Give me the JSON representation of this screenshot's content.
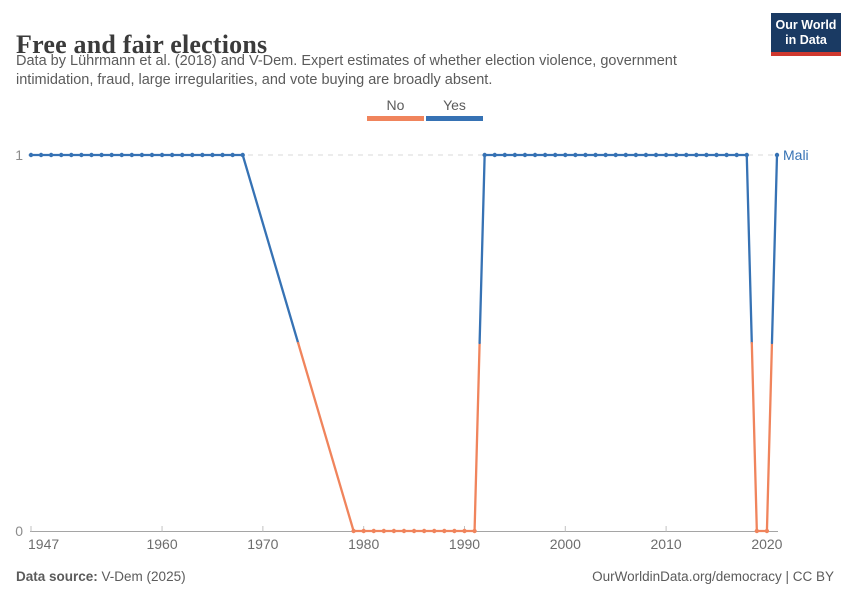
{
  "header": {
    "title": "Free and fair elections",
    "subtitle_lines": [
      "Data by Lührmann et al. (2018) and V-Dem. Expert estimates of whether election violence, government",
      "intimidation, fraud, large irregularities, and vote buying are broadly absent."
    ],
    "logo": {
      "line1": "Our World",
      "line2": "in Data",
      "bg_color": "#1A3A63",
      "bar_color": "#D0382E"
    }
  },
  "legend": {
    "items": [
      {
        "label": "No",
        "color": "#F0845C"
      },
      {
        "label": "Yes",
        "color": "#3672B4"
      }
    ]
  },
  "chart_data": {
    "type": "line",
    "title": "Free and fair elections",
    "entity_label": "Mali",
    "xlim": [
      1947,
      2021
    ],
    "ylim": [
      0,
      1
    ],
    "xticks": [
      1947,
      1960,
      1970,
      1980,
      1990,
      2000,
      2010,
      2020
    ],
    "yticks": [
      0,
      1
    ],
    "grid": "dashed horizontal line at y=1",
    "legend_position": "top-center",
    "category_labels": {
      "0": "No",
      "1": "Yes"
    },
    "colors": {
      "0": "#F0845C",
      "1": "#3672B4"
    },
    "data_gap_years": [
      1969,
      1978
    ],
    "series": [
      {
        "name": "Mali",
        "points": [
          [
            1947,
            1
          ],
          [
            1948,
            1
          ],
          [
            1949,
            1
          ],
          [
            1950,
            1
          ],
          [
            1951,
            1
          ],
          [
            1952,
            1
          ],
          [
            1953,
            1
          ],
          [
            1954,
            1
          ],
          [
            1955,
            1
          ],
          [
            1956,
            1
          ],
          [
            1957,
            1
          ],
          [
            1958,
            1
          ],
          [
            1959,
            1
          ],
          [
            1960,
            1
          ],
          [
            1961,
            1
          ],
          [
            1962,
            1
          ],
          [
            1963,
            1
          ],
          [
            1964,
            1
          ],
          [
            1965,
            1
          ],
          [
            1966,
            1
          ],
          [
            1967,
            1
          ],
          [
            1968,
            1
          ],
          [
            1979,
            0
          ],
          [
            1980,
            0
          ],
          [
            1981,
            0
          ],
          [
            1982,
            0
          ],
          [
            1983,
            0
          ],
          [
            1984,
            0
          ],
          [
            1985,
            0
          ],
          [
            1986,
            0
          ],
          [
            1987,
            0
          ],
          [
            1988,
            0
          ],
          [
            1989,
            0
          ],
          [
            1990,
            0
          ],
          [
            1991,
            0
          ],
          [
            1992,
            1
          ],
          [
            1993,
            1
          ],
          [
            1994,
            1
          ],
          [
            1995,
            1
          ],
          [
            1996,
            1
          ],
          [
            1997,
            1
          ],
          [
            1998,
            1
          ],
          [
            1999,
            1
          ],
          [
            2000,
            1
          ],
          [
            2001,
            1
          ],
          [
            2002,
            1
          ],
          [
            2003,
            1
          ],
          [
            2004,
            1
          ],
          [
            2005,
            1
          ],
          [
            2006,
            1
          ],
          [
            2007,
            1
          ],
          [
            2008,
            1
          ],
          [
            2009,
            1
          ],
          [
            2010,
            1
          ],
          [
            2011,
            1
          ],
          [
            2012,
            1
          ],
          [
            2013,
            1
          ],
          [
            2014,
            1
          ],
          [
            2015,
            1
          ],
          [
            2016,
            1
          ],
          [
            2017,
            1
          ],
          [
            2018,
            1
          ],
          [
            2019,
            0
          ],
          [
            2020,
            0
          ],
          [
            2021,
            1
          ]
        ]
      }
    ]
  },
  "footer": {
    "source_label": "Data source:",
    "source_value": "V-Dem (2025)",
    "right": "OurWorldinData.org/democracy | CC BY"
  }
}
